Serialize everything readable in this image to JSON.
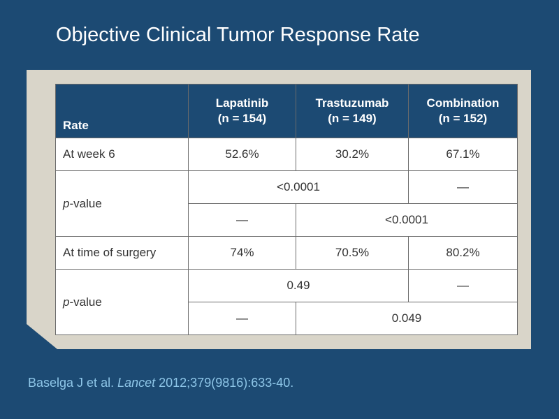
{
  "slide": {
    "title": "Objective Clinical Tumor Response Rate"
  },
  "table": {
    "header": {
      "rate": "Rate",
      "col1_line1": "Lapatinib",
      "col1_line2": "(n = 154)",
      "col2_line1": "Trastuzumab",
      "col2_line2": "(n = 149)",
      "col3_line1": "Combination",
      "col3_line2": "(n = 152)"
    },
    "week6": {
      "label": "At week 6",
      "lapatinib": "52.6%",
      "trastuzumab": "30.2%",
      "combination": "67.1%"
    },
    "pvalue_week6": {
      "label_italic": "p",
      "label_rest": "-value",
      "row1_span": "<0.0001",
      "row1_dash": "—",
      "row2_dash": "—",
      "row2_span": "<0.0001"
    },
    "surgery": {
      "label": "At time of surgery",
      "lapatinib": "74%",
      "trastuzumab": "70.5%",
      "combination": "80.2%"
    },
    "pvalue_surgery": {
      "label_italic": "p",
      "label_rest": "-value",
      "row1_span": "0.49",
      "row1_dash": "—",
      "row2_dash": "—",
      "row2_span": "0.049"
    }
  },
  "citation": {
    "authors": "Baselga J et al. ",
    "journal": "Lancet",
    "details": " 2012;379(9816):633-40."
  },
  "colors": {
    "background": "#1c4a73",
    "panel": "#d9d5c9",
    "header_fill": "#1c4a73",
    "citation_text": "#8ec6e8"
  }
}
